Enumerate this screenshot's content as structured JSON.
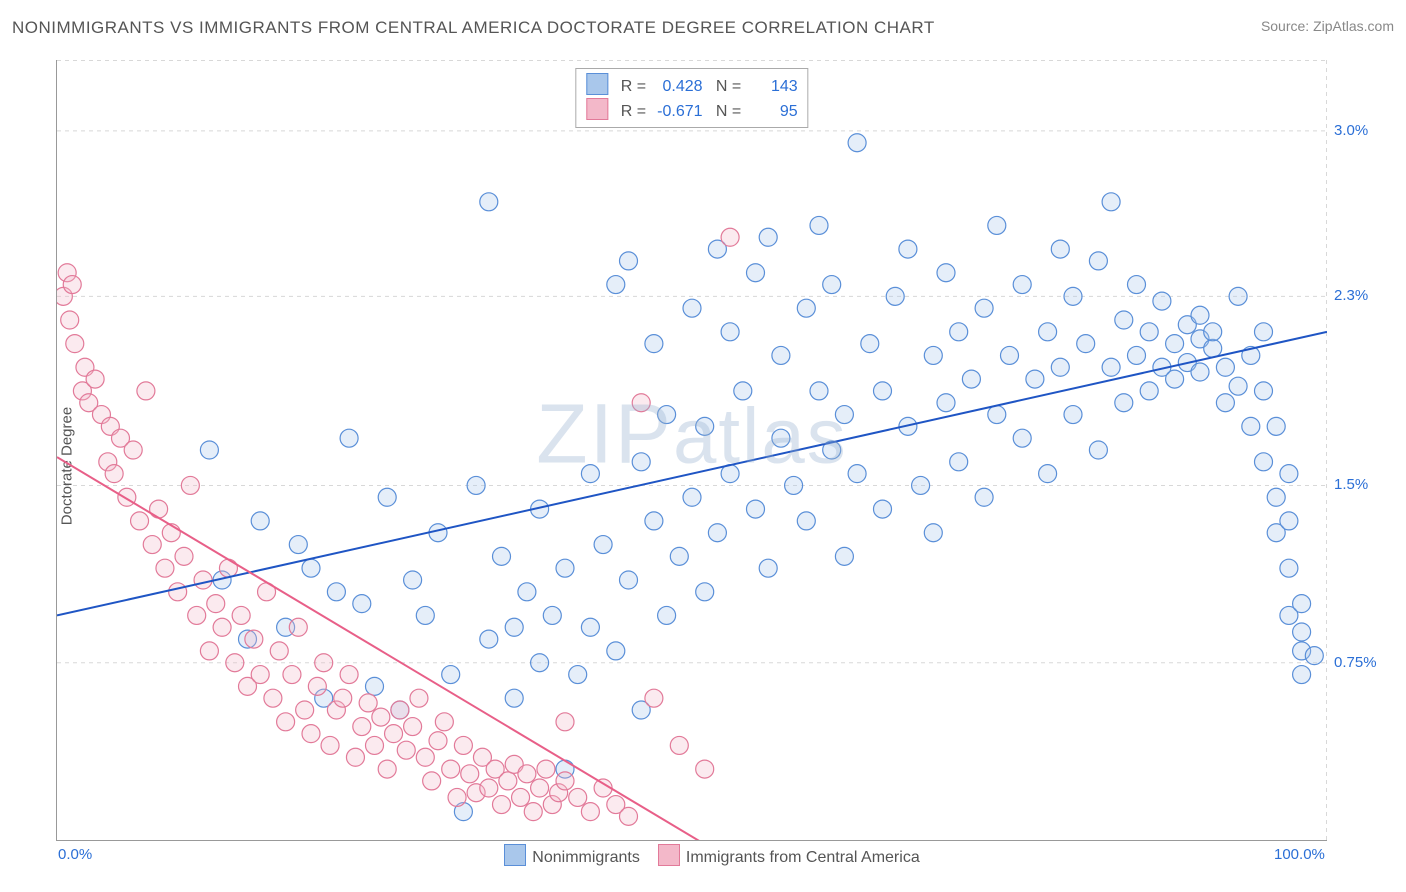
{
  "title": "NONIMMIGRANTS VS IMMIGRANTS FROM CENTRAL AMERICA DOCTORATE DEGREE CORRELATION CHART",
  "source_label": "Source:",
  "source_value": "ZipAtlas.com",
  "ylabel": "Doctorate Degree",
  "watermark": "ZIPatlas",
  "chart": {
    "type": "scatter",
    "background_color": "#ffffff",
    "grid_color": "#d8d8d8",
    "grid_dash": "4 4",
    "axis_color": "#999999",
    "xlim": [
      0,
      100
    ],
    "ylim": [
      0,
      3.3
    ],
    "yticks": [
      {
        "v": 0.75,
        "label": "0.75%"
      },
      {
        "v": 1.5,
        "label": "1.5%"
      },
      {
        "v": 2.3,
        "label": "2.3%"
      },
      {
        "v": 3.0,
        "label": "3.0%"
      }
    ],
    "xticks": [
      {
        "v": 0,
        "label": "0.0%"
      },
      {
        "v": 100,
        "label": "100.0%"
      }
    ],
    "marker_radius": 9,
    "marker_stroke_width": 1.2,
    "marker_fill_opacity": 0.3,
    "line_width": 2,
    "series": [
      {
        "id": "nonimmigrants",
        "label": "Nonimmigrants",
        "color_stroke": "#5a8fd8",
        "color_fill": "#a9c7eb",
        "line_color": "#1f55c4",
        "R": "0.428",
        "N": "143",
        "trend": {
          "x1": 0,
          "y1": 0.95,
          "x2": 100,
          "y2": 2.15
        },
        "points": [
          [
            12,
            1.65
          ],
          [
            13,
            1.1
          ],
          [
            15,
            0.85
          ],
          [
            16,
            1.35
          ],
          [
            18,
            0.9
          ],
          [
            19,
            1.25
          ],
          [
            20,
            1.15
          ],
          [
            21,
            0.6
          ],
          [
            22,
            1.05
          ],
          [
            23,
            1.7
          ],
          [
            24,
            1.0
          ],
          [
            25,
            0.65
          ],
          [
            26,
            1.45
          ],
          [
            27,
            0.55
          ],
          [
            28,
            1.1
          ],
          [
            29,
            0.95
          ],
          [
            30,
            1.3
          ],
          [
            31,
            0.7
          ],
          [
            32,
            0.12
          ],
          [
            33,
            1.5
          ],
          [
            34,
            0.85
          ],
          [
            34,
            2.7
          ],
          [
            35,
            1.2
          ],
          [
            36,
            0.6
          ],
          [
            36,
            0.9
          ],
          [
            37,
            1.05
          ],
          [
            38,
            0.75
          ],
          [
            38,
            1.4
          ],
          [
            39,
            0.95
          ],
          [
            40,
            0.3
          ],
          [
            40,
            1.15
          ],
          [
            41,
            0.7
          ],
          [
            42,
            1.55
          ],
          [
            42,
            0.9
          ],
          [
            43,
            1.25
          ],
          [
            44,
            0.8
          ],
          [
            44,
            2.35
          ],
          [
            45,
            1.1
          ],
          [
            45,
            2.45
          ],
          [
            46,
            1.6
          ],
          [
            46,
            0.55
          ],
          [
            47,
            1.35
          ],
          [
            47,
            2.1
          ],
          [
            48,
            1.8
          ],
          [
            48,
            0.95
          ],
          [
            49,
            1.2
          ],
          [
            50,
            1.45
          ],
          [
            50,
            2.25
          ],
          [
            51,
            1.75
          ],
          [
            51,
            1.05
          ],
          [
            52,
            1.3
          ],
          [
            52,
            2.5
          ],
          [
            53,
            2.15
          ],
          [
            53,
            1.55
          ],
          [
            54,
            1.9
          ],
          [
            55,
            1.4
          ],
          [
            55,
            2.4
          ],
          [
            56,
            2.55
          ],
          [
            56,
            1.15
          ],
          [
            57,
            1.7
          ],
          [
            57,
            2.05
          ],
          [
            58,
            1.5
          ],
          [
            59,
            2.25
          ],
          [
            59,
            1.35
          ],
          [
            60,
            1.9
          ],
          [
            60,
            2.6
          ],
          [
            61,
            1.65
          ],
          [
            61,
            2.35
          ],
          [
            62,
            1.2
          ],
          [
            62,
            1.8
          ],
          [
            63,
            2.95
          ],
          [
            63,
            1.55
          ],
          [
            64,
            2.1
          ],
          [
            65,
            1.4
          ],
          [
            65,
            1.9
          ],
          [
            66,
            2.3
          ],
          [
            67,
            1.75
          ],
          [
            67,
            2.5
          ],
          [
            68,
            1.5
          ],
          [
            69,
            2.05
          ],
          [
            69,
            1.3
          ],
          [
            70,
            1.85
          ],
          [
            70,
            2.4
          ],
          [
            71,
            2.15
          ],
          [
            71,
            1.6
          ],
          [
            72,
            1.95
          ],
          [
            73,
            2.25
          ],
          [
            73,
            1.45
          ],
          [
            74,
            1.8
          ],
          [
            74,
            2.6
          ],
          [
            75,
            2.05
          ],
          [
            76,
            1.7
          ],
          [
            76,
            2.35
          ],
          [
            77,
            1.95
          ],
          [
            78,
            2.15
          ],
          [
            78,
            1.55
          ],
          [
            79,
            2.0
          ],
          [
            79,
            2.5
          ],
          [
            80,
            1.8
          ],
          [
            80,
            2.3
          ],
          [
            81,
            2.1
          ],
          [
            82,
            1.65
          ],
          [
            82,
            2.45
          ],
          [
            83,
            2.0
          ],
          [
            83,
            2.7
          ],
          [
            84,
            2.2
          ],
          [
            84,
            1.85
          ],
          [
            85,
            2.05
          ],
          [
            85,
            2.35
          ],
          [
            86,
            1.9
          ],
          [
            86,
            2.15
          ],
          [
            87,
            2.0
          ],
          [
            87,
            2.28
          ],
          [
            88,
            1.95
          ],
          [
            88,
            2.1
          ],
          [
            89,
            2.18
          ],
          [
            89,
            2.02
          ],
          [
            90,
            2.12
          ],
          [
            90,
            1.98
          ],
          [
            90,
            2.22
          ],
          [
            91,
            2.08
          ],
          [
            91,
            2.15
          ],
          [
            92,
            1.85
          ],
          [
            92,
            2.0
          ],
          [
            93,
            1.92
          ],
          [
            93,
            2.3
          ],
          [
            94,
            1.75
          ],
          [
            94,
            2.05
          ],
          [
            95,
            1.6
          ],
          [
            95,
            1.9
          ],
          [
            95,
            2.15
          ],
          [
            96,
            1.45
          ],
          [
            96,
            1.75
          ],
          [
            96,
            1.3
          ],
          [
            97,
            1.15
          ],
          [
            97,
            1.55
          ],
          [
            97,
            0.95
          ],
          [
            98,
            0.8
          ],
          [
            98,
            1.0
          ],
          [
            98,
            0.7
          ],
          [
            98,
            0.88
          ],
          [
            99,
            0.78
          ],
          [
            97,
            1.35
          ]
        ]
      },
      {
        "id": "immigrants",
        "label": "Immigrants from Central America",
        "color_stroke": "#e27a99",
        "color_fill": "#f3b8c9",
        "line_color": "#e85f88",
        "R": "-0.671",
        "N": "95",
        "trend": {
          "x1": 0,
          "y1": 1.62,
          "x2": 52,
          "y2": -0.05
        },
        "points": [
          [
            0.5,
            2.3
          ],
          [
            0.8,
            2.4
          ],
          [
            1.0,
            2.2
          ],
          [
            1.2,
            2.35
          ],
          [
            1.4,
            2.1
          ],
          [
            2.0,
            1.9
          ],
          [
            2.2,
            2.0
          ],
          [
            2.5,
            1.85
          ],
          [
            3.0,
            1.95
          ],
          [
            3.5,
            1.8
          ],
          [
            4.0,
            1.6
          ],
          [
            4.2,
            1.75
          ],
          [
            4.5,
            1.55
          ],
          [
            5.0,
            1.7
          ],
          [
            5.5,
            1.45
          ],
          [
            6.0,
            1.65
          ],
          [
            6.5,
            1.35
          ],
          [
            7.0,
            1.9
          ],
          [
            7.5,
            1.25
          ],
          [
            8.0,
            1.4
          ],
          [
            8.5,
            1.15
          ],
          [
            9.0,
            1.3
          ],
          [
            9.5,
            1.05
          ],
          [
            10,
            1.2
          ],
          [
            10.5,
            1.5
          ],
          [
            11,
            0.95
          ],
          [
            11.5,
            1.1
          ],
          [
            12,
            0.8
          ],
          [
            12.5,
            1.0
          ],
          [
            13,
            0.9
          ],
          [
            13.5,
            1.15
          ],
          [
            14,
            0.75
          ],
          [
            14.5,
            0.95
          ],
          [
            15,
            0.65
          ],
          [
            15.5,
            0.85
          ],
          [
            16,
            0.7
          ],
          [
            16.5,
            1.05
          ],
          [
            17,
            0.6
          ],
          [
            17.5,
            0.8
          ],
          [
            18,
            0.5
          ],
          [
            18.5,
            0.7
          ],
          [
            19,
            0.9
          ],
          [
            19.5,
            0.55
          ],
          [
            20,
            0.45
          ],
          [
            20.5,
            0.65
          ],
          [
            21,
            0.75
          ],
          [
            21.5,
            0.4
          ],
          [
            22,
            0.55
          ],
          [
            22.5,
            0.6
          ],
          [
            23,
            0.7
          ],
          [
            23.5,
            0.35
          ],
          [
            24,
            0.48
          ],
          [
            24.5,
            0.58
          ],
          [
            25,
            0.4
          ],
          [
            25.5,
            0.52
          ],
          [
            26,
            0.3
          ],
          [
            26.5,
            0.45
          ],
          [
            27,
            0.55
          ],
          [
            27.5,
            0.38
          ],
          [
            28,
            0.48
          ],
          [
            28.5,
            0.6
          ],
          [
            29,
            0.35
          ],
          [
            29.5,
            0.25
          ],
          [
            30,
            0.42
          ],
          [
            30.5,
            0.5
          ],
          [
            31,
            0.3
          ],
          [
            31.5,
            0.18
          ],
          [
            32,
            0.4
          ],
          [
            32.5,
            0.28
          ],
          [
            33,
            0.2
          ],
          [
            33.5,
            0.35
          ],
          [
            34,
            0.22
          ],
          [
            34.5,
            0.3
          ],
          [
            35,
            0.15
          ],
          [
            35.5,
            0.25
          ],
          [
            36,
            0.32
          ],
          [
            36.5,
            0.18
          ],
          [
            37,
            0.28
          ],
          [
            37.5,
            0.12
          ],
          [
            38,
            0.22
          ],
          [
            38.5,
            0.3
          ],
          [
            39,
            0.15
          ],
          [
            39.5,
            0.2
          ],
          [
            40,
            0.25
          ],
          [
            41,
            0.18
          ],
          [
            42,
            0.12
          ],
          [
            43,
            0.22
          ],
          [
            44,
            0.15
          ],
          [
            45,
            0.1
          ],
          [
            46,
            1.85
          ],
          [
            47,
            0.6
          ],
          [
            49,
            0.4
          ],
          [
            51,
            0.3
          ],
          [
            53,
            2.55
          ],
          [
            40,
            0.5
          ]
        ]
      }
    ]
  }
}
